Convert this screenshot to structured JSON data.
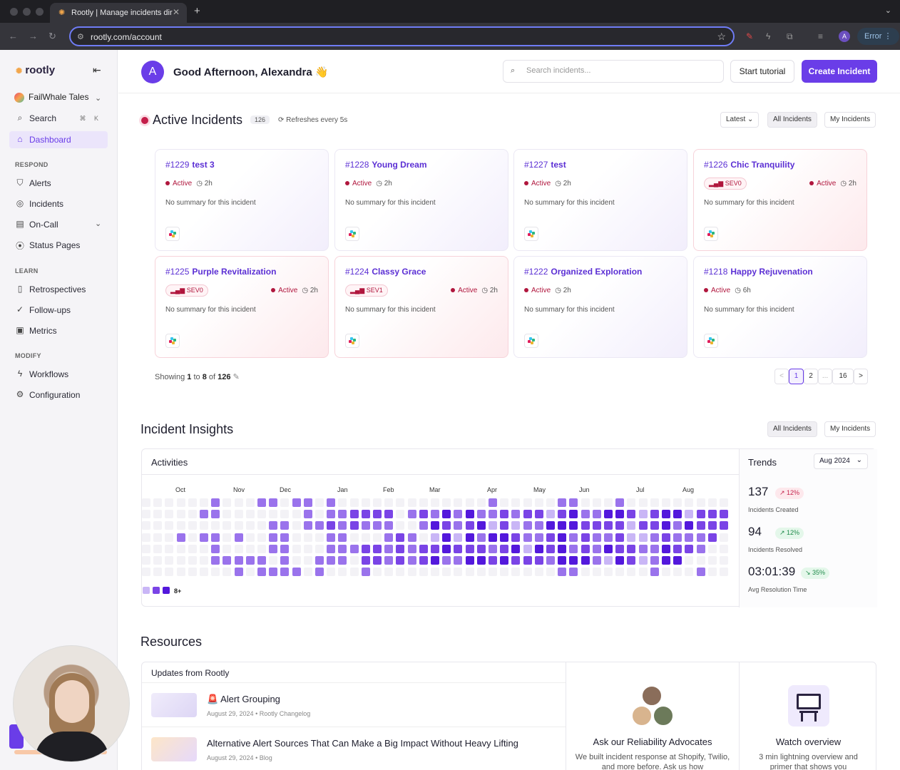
{
  "browser": {
    "tab_title": "Rootly | Manage incidents dir",
    "url": "rootly.com/account",
    "error_label": "Error",
    "profile_initial": "A"
  },
  "sidebar": {
    "logo": "rootly",
    "org": "FailWhale Tales",
    "search_label": "Search",
    "search_kbd": [
      "⌘",
      "K"
    ],
    "dashboard": "Dashboard",
    "sections": {
      "respond": "RESPOND",
      "learn": "LEARN",
      "modify": "MODIFY"
    },
    "respond_items": [
      "Alerts",
      "Incidents",
      "On-Call",
      "Status Pages"
    ],
    "learn_items": [
      "Retrospectives",
      "Follow-ups",
      "Metrics"
    ],
    "modify_items": [
      "Workflows",
      "Configuration"
    ]
  },
  "header": {
    "avatar_initial": "A",
    "greeting": "Good Afternoon, Alexandra 👋",
    "search_placeholder": "Search incidents...",
    "tutorial_button": "Start tutorial",
    "create_button": "Create Incident"
  },
  "active_incidents": {
    "title": "Active Incidents",
    "count": "126",
    "refresh": "⟳ Refreshes every 5s",
    "sort": "Latest",
    "filter_all": "All Incidents",
    "filter_mine": "My Incidents",
    "cards": [
      {
        "num": "#1229",
        "name": "test 3",
        "status": "Active",
        "time": "2h",
        "sev": "",
        "summary": "No summary for this incident"
      },
      {
        "num": "#1228",
        "name": "Young Dream",
        "status": "Active",
        "time": "2h",
        "sev": "",
        "summary": "No summary for this incident"
      },
      {
        "num": "#1227",
        "name": "test",
        "status": "Active",
        "time": "2h",
        "sev": "",
        "summary": "No summary for this incident"
      },
      {
        "num": "#1226",
        "name": "Chic Tranquility",
        "status": "Active",
        "time": "2h",
        "sev": "SEV0",
        "summary": "No summary for this incident"
      },
      {
        "num": "#1225",
        "name": "Purple Revitalization",
        "status": "Active",
        "time": "2h",
        "sev": "SEV0",
        "summary": "No summary for this incident"
      },
      {
        "num": "#1224",
        "name": "Classy Grace",
        "status": "Active",
        "time": "2h",
        "sev": "SEV1",
        "summary": "No summary for this incident"
      },
      {
        "num": "#1222",
        "name": "Organized Exploration",
        "status": "Active",
        "time": "2h",
        "sev": "",
        "summary": "No summary for this incident"
      },
      {
        "num": "#1218",
        "name": "Happy Rejuvenation",
        "status": "Active",
        "time": "6h",
        "sev": "",
        "summary": "No summary for this incident"
      }
    ],
    "showing": {
      "prefix": "Showing",
      "from": "1",
      "to_word": "to",
      "to": "8",
      "of_word": "of",
      "total": "126"
    },
    "pagination": [
      "<",
      "1",
      "2",
      "...",
      "16",
      ">"
    ]
  },
  "insights": {
    "title": "Incident Insights",
    "filter_all": "All Incidents",
    "filter_mine": "My Incidents",
    "activities_title": "Activities",
    "months": [
      "Oct",
      "Nov",
      "Dec",
      "Jan",
      "Feb",
      "Mar",
      "Apr",
      "May",
      "Jun",
      "Jul",
      "Aug"
    ],
    "legend_max": "8+",
    "colors": {
      "empty": "#f3f2f6",
      "l1": "#c9b6f6",
      "l2": "#9a73ec",
      "l3": "#7a44e6",
      "l4": "#5318dc"
    },
    "trends_title": "Trends",
    "trends_month": "Aug 2024",
    "metrics": [
      {
        "value": "137",
        "label": "Incidents Created",
        "delta": "↗ 12%",
        "dir": "up-bad"
      },
      {
        "value": "94",
        "label": "Incidents Resolved",
        "delta": "↗ 12%",
        "dir": "up-good"
      },
      {
        "value": "03:01:39",
        "label": "Avg Resolution Time",
        "delta": "↘ 35%",
        "dir": "down-good"
      }
    ]
  },
  "resources": {
    "title": "Resources",
    "updates_title": "Updates from Rootly",
    "updates": [
      {
        "title": "🚨 Alert Grouping",
        "date": "August 29, 2024",
        "source": "Rootly Changelog"
      },
      {
        "title": "Alternative Alert Sources That Can Make a Big Impact Without Heavy Lifting",
        "date": "August 29, 2024",
        "source": "Blog"
      }
    ],
    "advocates_title": "Ask our Reliability Advocates",
    "advocates_desc": "We built incident response at Shopify, Twilio, and more before. Ask us how",
    "overview_title": "Watch overview",
    "overview_desc": "3 min lightning overview and primer that shows you"
  }
}
